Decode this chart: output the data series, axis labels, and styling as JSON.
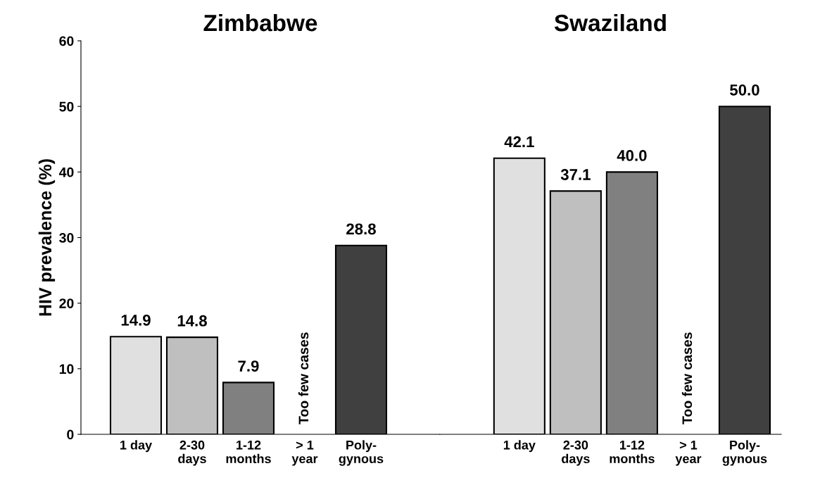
{
  "chart_data": [
    {
      "type": "bar",
      "title": "Zimbabwe",
      "ylabel": "HIV prevalence (%)",
      "categories": [
        "1 day",
        "2-30\ndays",
        "1-12\nmonths",
        "> 1\nyear",
        "Poly-\ngynous"
      ],
      "values": [
        14.9,
        14.8,
        7.9,
        null,
        28.8
      ],
      "value_labels": [
        "14.9",
        "14.8",
        "7.9",
        null,
        "28.8"
      ],
      "colors": [
        "#e0e0e0",
        "#bfbfbf",
        "#808080",
        null,
        "#404040"
      ],
      "ylim": [
        0,
        60
      ],
      "yticks": [
        0,
        10,
        20,
        30,
        40,
        50,
        60
      ],
      "annotations": [
        "Too few cases"
      ]
    },
    {
      "type": "bar",
      "title": "Swaziland",
      "categories": [
        "1 day",
        "2-30\ndays",
        "1-12\nmonths",
        "> 1\nyear",
        "Poly-\ngynous"
      ],
      "values": [
        42.1,
        37.1,
        40.0,
        null,
        50.0
      ],
      "value_labels": [
        "42.1",
        "37.1",
        "40.0",
        null,
        "50.0"
      ],
      "colors": [
        "#e0e0e0",
        "#bfbfbf",
        "#808080",
        null,
        "#404040"
      ],
      "ylim": [
        0,
        60
      ],
      "yticks": [
        0,
        10,
        20,
        30,
        40,
        50,
        60
      ],
      "tick_labels": "x",
      "annotations": [
        "Too few cases"
      ]
    }
  ]
}
